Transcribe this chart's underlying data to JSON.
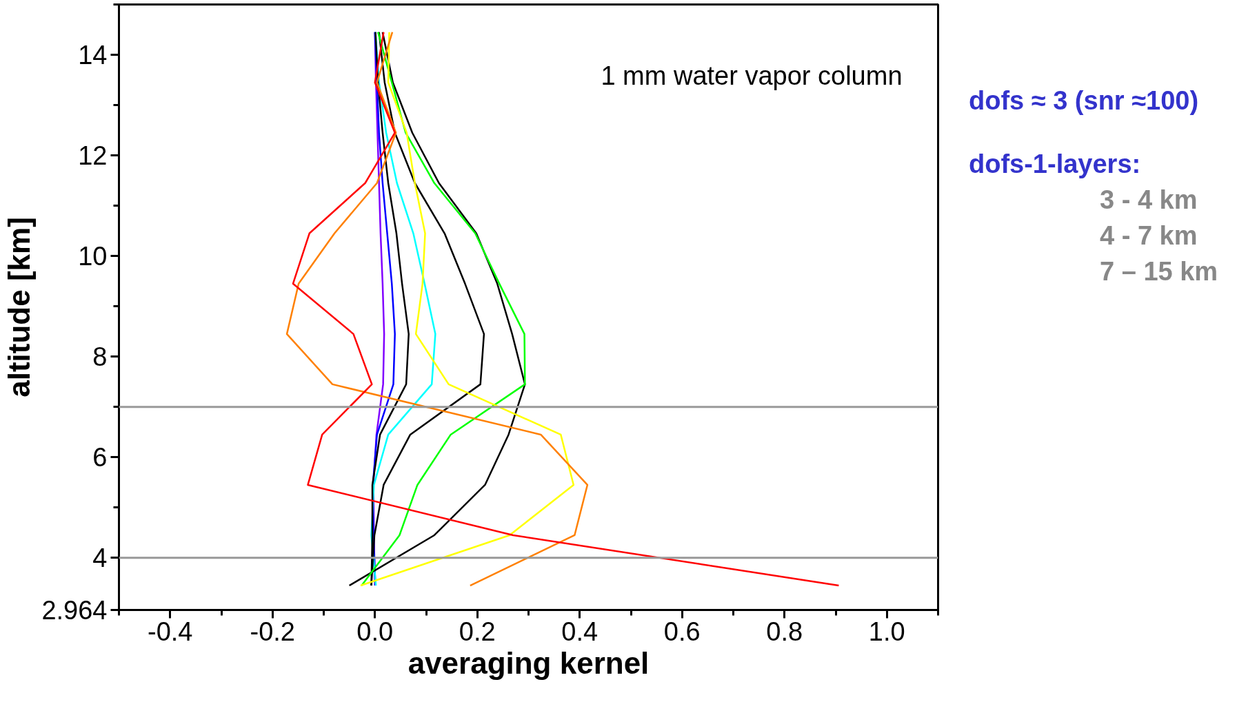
{
  "chart_data": {
    "type": "line",
    "xlabel": "averaging kernel",
    "ylabel": "altitude [km]",
    "xlim": [
      -0.5,
      1.1
    ],
    "ylim": [
      2.964,
      15
    ],
    "xticks": [
      {
        "value": -0.5,
        "label": null
      },
      -0.4,
      {
        "value": -0.3,
        "label": null
      },
      -0.2,
      {
        "value": -0.1,
        "label": null
      },
      {
        "value": 0,
        "label": "0.0"
      },
      {
        "value": 0.1,
        "label": null
      },
      0.2,
      {
        "value": 0.3,
        "label": null
      },
      0.4,
      {
        "value": 0.5,
        "label": null
      },
      0.6,
      {
        "value": 0.7,
        "label": null
      },
      0.8,
      {
        "value": 0.9,
        "label": null
      },
      {
        "value": 1,
        "label": "1.0"
      },
      {
        "value": 1.1,
        "label": null
      }
    ],
    "yticks": [
      2.964,
      4,
      {
        "value": 5,
        "label": null
      },
      6,
      {
        "value": 7,
        "label": null
      },
      8,
      {
        "value": 9,
        "label": null
      },
      10,
      {
        "value": 11,
        "label": null
      },
      12,
      {
        "value": 13,
        "label": null
      },
      14,
      {
        "value": 15,
        "label": null
      }
    ],
    "grid": false,
    "marker": "none",
    "line_style": "solid",
    "ref_lines": [
      {
        "axis": "y",
        "value": 4,
        "color": "#999999"
      },
      {
        "axis": "y",
        "value": 7,
        "color": "#999999"
      }
    ],
    "annotations": [
      "1 mm water vapor column",
      "dofs ≈ 3 (snr ≈100)",
      "dofs-1-layers:",
      "3 - 4 km",
      "4 - 7 km",
      "7 – 15 km"
    ],
    "series": [
      {
        "color": "#8000ff",
        "x": [
          0,
          -0.002,
          -0.003,
          0.003,
          0.016,
          0.018,
          0.015,
          0.011,
          0.008,
          0.005,
          0.002,
          0
        ],
        "values": [
          3.45,
          4.45,
          5.45,
          6.45,
          7.45,
          8.45,
          9.45,
          10.45,
          11.45,
          12.45,
          13.45,
          14.45
        ]
      },
      {
        "color": "#0000ff",
        "x": [
          0.001,
          -0.003,
          -0.004,
          0.004,
          0.036,
          0.039,
          0.033,
          0.024,
          0.015,
          0.008,
          0.004,
          0
        ],
        "values": [
          3.45,
          4.45,
          5.45,
          6.45,
          7.45,
          8.45,
          9.45,
          10.45,
          11.45,
          12.45,
          13.45,
          14.45
        ]
      },
      {
        "color": "#00ffff",
        "x": [
          0.002,
          -0.007,
          -0.002,
          0.026,
          0.111,
          0.118,
          0.097,
          0.075,
          0.043,
          0.022,
          0.008,
          0.001
        ],
        "values": [
          3.45,
          4.45,
          5.45,
          6.45,
          7.45,
          8.45,
          9.45,
          10.45,
          11.45,
          12.45,
          13.45,
          14.45
        ]
      },
      {
        "color": "#000000",
        "x": [
          -0.007,
          -0.005,
          -0.005,
          0.01,
          0.061,
          0.066,
          0.053,
          0.042,
          0.026,
          0.015,
          0.006,
          0.001
        ],
        "values": [
          3.45,
          4.45,
          5.45,
          6.45,
          7.45,
          8.45,
          9.45,
          10.45,
          11.45,
          12.45,
          13.45,
          14.45
        ]
      },
      {
        "color": "#000000",
        "x": [
          -0.007,
          -0.001,
          0.017,
          0.069,
          0.206,
          0.213,
          0.176,
          0.136,
          0.078,
          0.039,
          0.019,
          0.008
        ],
        "values": [
          3.45,
          4.45,
          5.45,
          6.45,
          7.45,
          8.45,
          9.45,
          10.45,
          11.45,
          12.45,
          13.45,
          14.45
        ]
      },
      {
        "color": "#000000",
        "x": [
          -0.05,
          0.116,
          0.215,
          0.261,
          0.293,
          0.268,
          0.239,
          0.198,
          0.125,
          0.073,
          0.035,
          0.015
        ],
        "values": [
          3.45,
          4.45,
          5.45,
          6.45,
          7.45,
          8.45,
          9.45,
          10.45,
          11.45,
          12.45,
          13.45,
          14.45
        ]
      },
      {
        "color": "#00ff00",
        "x": [
          -0.026,
          0.048,
          0.083,
          0.148,
          0.293,
          0.292,
          0.243,
          0.196,
          0.116,
          0.06,
          0.033,
          0.006
        ],
        "values": [
          3.45,
          4.45,
          5.45,
          6.45,
          7.45,
          8.45,
          9.45,
          10.45,
          11.45,
          12.45,
          13.45,
          14.45
        ]
      },
      {
        "color": "#ffff00",
        "x": [
          -0.028,
          0.263,
          0.388,
          0.363,
          0.144,
          0.08,
          0.093,
          0.098,
          0.078,
          0.062,
          0.026,
          0.028
        ],
        "values": [
          3.45,
          4.45,
          5.45,
          6.45,
          7.45,
          8.45,
          9.45,
          10.45,
          11.45,
          12.45,
          13.45,
          14.45
        ]
      },
      {
        "color": "#ff8000",
        "x": [
          0.186,
          0.39,
          0.415,
          0.324,
          -0.083,
          -0.172,
          -0.149,
          -0.079,
          0.004,
          0.041,
          0.004,
          0.034
        ],
        "values": [
          3.45,
          4.45,
          5.45,
          6.45,
          7.45,
          8.45,
          9.45,
          10.45,
          11.45,
          12.45,
          13.45,
          14.45
        ]
      },
      {
        "color": "#ff0000",
        "x": [
          0.906,
          0.27,
          -0.131,
          -0.103,
          -0.006,
          -0.042,
          -0.16,
          -0.128,
          -0.019,
          0.039,
          0,
          0.017
        ],
        "values": [
          3.45,
          4.45,
          5.45,
          6.45,
          7.45,
          8.45,
          9.45,
          10.45,
          11.45,
          12.45,
          13.45,
          14.45
        ]
      }
    ]
  }
}
